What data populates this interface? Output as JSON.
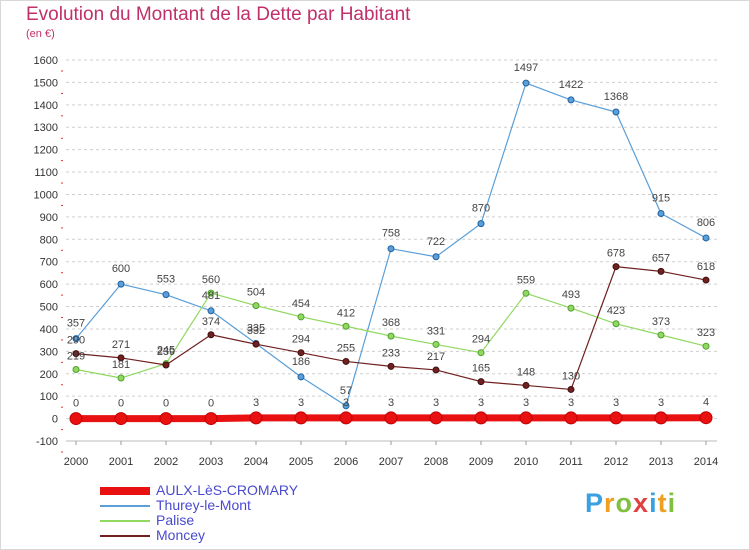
{
  "title": "Evolution du Montant de la Dette par Habitant",
  "subtitle": "(en €)",
  "logo": {
    "text": "Proxiti",
    "colors": [
      "#3aa0e0",
      "#f0a020",
      "#80c040",
      "#e04040",
      "#3aa0e0",
      "#f0a020",
      "#80c040"
    ]
  },
  "chart_data": {
    "type": "line",
    "x": [
      "2000",
      "2001",
      "2002",
      "2003",
      "2004",
      "2005",
      "2006",
      "2007",
      "2008",
      "2009",
      "2010",
      "2011",
      "2012",
      "2013",
      "2014"
    ],
    "ylim": [
      -100,
      1600
    ],
    "yticks": [
      -100,
      0,
      100,
      200,
      300,
      400,
      500,
      600,
      700,
      800,
      900,
      1000,
      1100,
      1200,
      1300,
      1400,
      1500,
      1600
    ],
    "grid": "horizontal-dashed",
    "legend": "bottom-left",
    "series": [
      {
        "name": "AULX-LèS-CROMARY",
        "color": "#e81010",
        "width": 7,
        "marker": 6,
        "values": [
          0,
          0,
          0,
          0,
          3,
          3,
          3,
          3,
          3,
          3,
          3,
          3,
          3,
          3,
          4
        ]
      },
      {
        "name": "Thurey-le-Mont",
        "color": "#5a9fd8",
        "width": 1.2,
        "marker": 3,
        "values": [
          357,
          600,
          553,
          481,
          335,
          186,
          57,
          758,
          722,
          870,
          1497,
          1422,
          1368,
          915,
          806
        ]
      },
      {
        "name": "Palise",
        "color": "#90d860",
        "width": 1.2,
        "marker": 3,
        "values": [
          219,
          181,
          245,
          560,
          504,
          454,
          412,
          368,
          331,
          294,
          559,
          493,
          423,
          373,
          323
        ]
      },
      {
        "name": "Moncey",
        "color": "#702020",
        "width": 1.2,
        "marker": 3,
        "values": [
          290,
          271,
          239,
          374,
          332,
          294,
          255,
          233,
          217,
          165,
          148,
          130,
          678,
          657,
          618
        ]
      }
    ]
  }
}
